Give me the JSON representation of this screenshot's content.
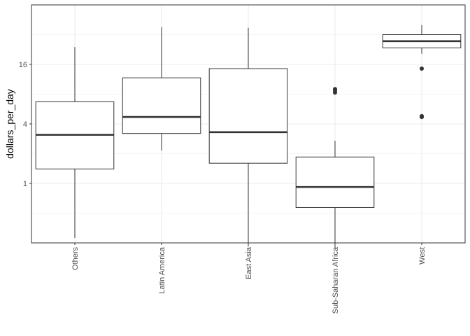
{
  "chart_data": {
    "type": "box",
    "title": "",
    "xlabel": "",
    "ylabel": "dollars_per_day",
    "y_scale": "log2",
    "ylim": [
      0.25,
      50
    ],
    "y_ticks": [
      1,
      4,
      16
    ],
    "y_tick_labels": [
      "1",
      "4",
      "16"
    ],
    "grid": true,
    "categories": [
      "Others",
      "Latin America",
      "East Asia",
      "Sub-Saharan Africa",
      "West"
    ],
    "boxes": [
      {
        "category": "Others",
        "whisker_low": 0.28,
        "q1": 1.4,
        "median": 3.1,
        "q3": 6.7,
        "whisker_high": 24,
        "outliers": []
      },
      {
        "category": "Latin America",
        "whisker_low": 2.15,
        "q1": 3.2,
        "median": 4.7,
        "q3": 11.7,
        "whisker_high": 38,
        "outliers": []
      },
      {
        "category": "East Asia",
        "whisker_low": 0.23,
        "q1": 1.6,
        "median": 3.3,
        "q3": 14.5,
        "whisker_high": 37.5,
        "outliers": []
      },
      {
        "category": "Sub-Saharan Africa",
        "whisker_low": 0.22,
        "q1": 0.57,
        "median": 0.92,
        "q3": 1.85,
        "whisker_high": 2.7,
        "outliers": [
          8.3,
          8.7,
          9.0
        ]
      },
      {
        "category": "West",
        "whisker_low": 20.5,
        "q1": 23.5,
        "median": 27.5,
        "q3": 32,
        "whisker_high": 40,
        "outliers": [
          14.5,
          4.7,
          4.8
        ]
      }
    ],
    "colors": {
      "box_stroke": "#333333",
      "grid": "#ebebeb",
      "panel_border": "#333333"
    }
  }
}
